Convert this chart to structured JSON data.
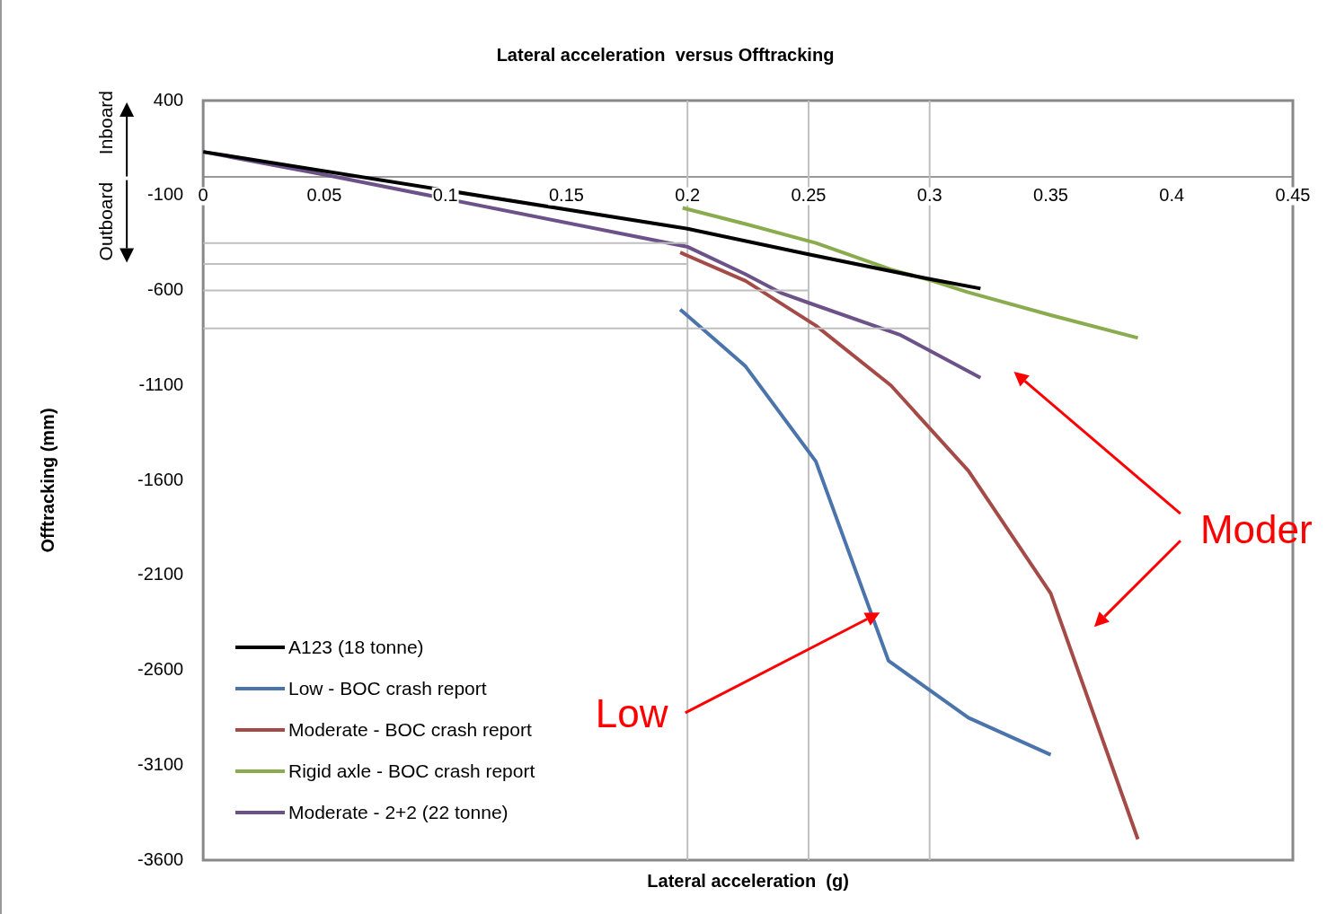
{
  "chart_data": {
    "type": "line",
    "title": "Lateral acceleration  versus Offtracking",
    "xlabel": "Lateral acceleration  (g)",
    "ylabel": "Offtracking (mm)",
    "xlim": [
      0,
      0.45
    ],
    "xticks": [
      0,
      0.05,
      0.1,
      0.15,
      0.2,
      0.25,
      0.3,
      0.35,
      0.4,
      0.45
    ],
    "ylim": [
      -3600,
      400
    ],
    "yticks": [
      -3600,
      -3100,
      -2600,
      -2100,
      -1600,
      -1100,
      -600,
      -100,
      400
    ],
    "grid": false,
    "legend": "bottom left",
    "ref_lines": [
      {
        "axis": "x",
        "value": 0.2,
        "color": "#bfbfbf"
      },
      {
        "axis": "x",
        "value": 0.25,
        "color": "#bfbfbf"
      },
      {
        "axis": "x",
        "value": 0.3,
        "color": "#bfbfbf"
      }
    ],
    "annotations": [
      "Inboard",
      "Outboard",
      "Low",
      "Moder"
    ],
    "series": [
      {
        "color": "#bfbfbf",
        "x": [
          0,
          0.2
        ],
        "values": [
          -350,
          -350
        ]
      },
      {
        "color": "#bfbfbf",
        "x": [
          0,
          0.2
        ],
        "values": [
          -460,
          -460
        ]
      },
      {
        "color": "#bfbfbf",
        "x": [
          0,
          0.25
        ],
        "values": [
          -600,
          -600
        ]
      },
      {
        "color": "#bfbfbf",
        "x": [
          0,
          0.3
        ],
        "values": [
          -800,
          -800
        ]
      },
      {
        "name": "A123 (18 tonne)",
        "color": "#000000",
        "x": [
          0,
          0.2,
          0.25,
          0.3,
          0.321
        ],
        "values": [
          130,
          -275,
          -410,
          -540,
          -590
        ]
      },
      {
        "name": "Low - BOC crash report",
        "color": "#4a74ab",
        "x": [
          0.197,
          0.224,
          0.253,
          0.283,
          0.316,
          0.35
        ],
        "values": [
          -700,
          -1000,
          -1500,
          -2550,
          -2850,
          -3045
        ]
      },
      {
        "name": "Moderate - BOC crash report",
        "color": "#a44a47",
        "x": [
          0.197,
          0.224,
          0.253,
          0.284,
          0.316,
          0.35,
          0.386
        ],
        "values": [
          -400,
          -550,
          -785,
          -1100,
          -1550,
          -2195,
          -3490
        ]
      },
      {
        "name": "Rigid axle - BOC crash report",
        "color": "#8aab4e",
        "x": [
          0.198,
          0.224,
          0.253,
          0.284,
          0.3,
          0.316,
          0.35,
          0.386
        ],
        "values": [
          -165,
          -250,
          -350,
          -490,
          -545,
          -610,
          -730,
          -850
        ]
      },
      {
        "name": "Moderate - 2+2 (22 tonne)",
        "color": "#6c5289",
        "x": [
          0,
          0.05,
          0.2,
          0.224,
          0.239,
          0.25,
          0.288,
          0.321
        ],
        "values": [
          130,
          10,
          -370,
          -515,
          -615,
          -665,
          -835,
          -1060
        ]
      }
    ]
  }
}
